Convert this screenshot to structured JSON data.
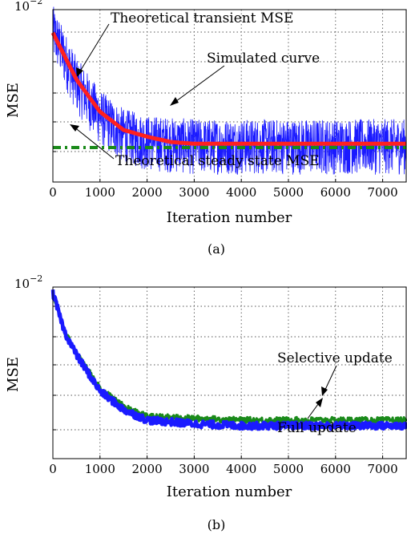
{
  "chart_data": [
    {
      "type": "line",
      "panel_label": "(a)",
      "xlabel": "Iteration number",
      "ylabel": "MSE",
      "xlim": [
        0,
        7500
      ],
      "x_ticks": [
        "0",
        "1000",
        "2000",
        "3000",
        "4000",
        "5000",
        "6000",
        "7000"
      ],
      "y_scale": "log",
      "y_top_label": {
        "base": "10",
        "exponent": "−2"
      },
      "grid": true,
      "annotations": [
        "Theoretical transient MSE",
        "Simulated curve",
        "Theoretical steady state MSE"
      ],
      "series": [
        {
          "role": "simulated",
          "color": "#1a1aff",
          "x": [
            0,
            500,
            1000,
            1500,
            2000,
            3000,
            4000,
            5000,
            6000,
            7500
          ],
          "y": [
            0.0085,
            0.0056,
            0.0043,
            0.0037,
            0.0035,
            0.0034,
            0.0034,
            0.0034,
            0.0034,
            0.0034
          ]
        },
        {
          "role": "transient",
          "color": "#ff2020",
          "x": [
            0,
            500,
            1000,
            1500,
            2000,
            2500,
            3000,
            4000,
            5000,
            6000,
            7500
          ],
          "y": [
            0.0083,
            0.0057,
            0.0044,
            0.0038,
            0.0036,
            0.00345,
            0.0034,
            0.0034,
            0.0034,
            0.0034,
            0.0034
          ]
        },
        {
          "role": "steady",
          "color": "#1a8a1a",
          "x": [
            0,
            7500
          ],
          "y": [
            0.0033,
            0.0033
          ]
        }
      ]
    },
    {
      "type": "line",
      "panel_label": "(b)",
      "xlabel": "Iteration number",
      "ylabel": "MSE",
      "xlim": [
        0,
        7500
      ],
      "x_ticks": [
        "0",
        "1000",
        "2000",
        "3000",
        "4000",
        "5000",
        "6000",
        "7000"
      ],
      "y_scale": "log",
      "y_top_label": {
        "base": "10",
        "exponent": "−2"
      },
      "grid": true,
      "annotations": [
        "Selective update",
        "Full update"
      ],
      "series": [
        {
          "role": "selective",
          "color": "#1a8a1a",
          "x": [
            0,
            250,
            500,
            1000,
            1500,
            2000,
            3000,
            4000,
            5000,
            6000,
            7500
          ],
          "y": [
            0.0095,
            0.0068,
            0.0057,
            0.0042,
            0.0036,
            0.0033,
            0.00325,
            0.0032,
            0.0032,
            0.0032,
            0.0032
          ]
        },
        {
          "role": "full",
          "color": "#1a1aff",
          "x": [
            0,
            250,
            500,
            1000,
            1500,
            2000,
            3000,
            4000,
            5000,
            6000,
            7500
          ],
          "y": [
            0.0095,
            0.0068,
            0.0056,
            0.0041,
            0.0035,
            0.0032,
            0.0031,
            0.00305,
            0.00305,
            0.00305,
            0.00305
          ]
        }
      ]
    }
  ]
}
